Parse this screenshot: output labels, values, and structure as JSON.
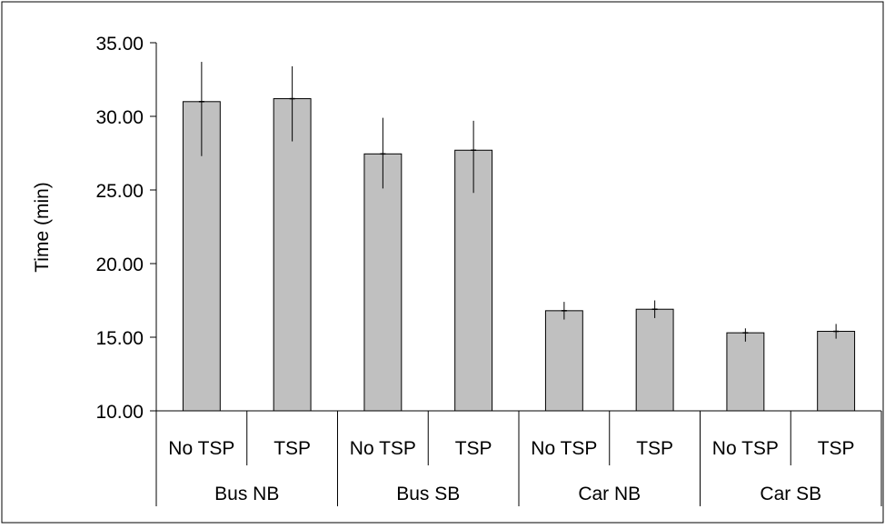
{
  "chart_data": {
    "type": "bar",
    "title": "",
    "xlabel": "",
    "ylabel": "Time (min)",
    "ylim": [
      10,
      35
    ],
    "yticks": [
      "10.00",
      "15.00",
      "20.00",
      "25.00",
      "30.00",
      "35.00"
    ],
    "groups": [
      "Bus NB",
      "Bus SB",
      "Car NB",
      "Car SB"
    ],
    "categories": [
      "No TSP",
      "TSP",
      "No TSP",
      "TSP",
      "No TSP",
      "TSP",
      "No TSP",
      "TSP"
    ],
    "values": [
      31.0,
      31.2,
      27.45,
      27.7,
      16.8,
      16.9,
      15.3,
      15.4
    ],
    "error_low": [
      27.3,
      28.3,
      25.1,
      24.8,
      16.2,
      16.3,
      14.7,
      14.9
    ],
    "error_high": [
      33.7,
      33.4,
      29.9,
      29.7,
      17.4,
      17.5,
      15.6,
      15.9
    ],
    "grid": false,
    "legend": "none",
    "colors": {
      "bar_fill": "#c0c0c0",
      "bar_stroke": "#000000",
      "axis": "#000000"
    }
  }
}
